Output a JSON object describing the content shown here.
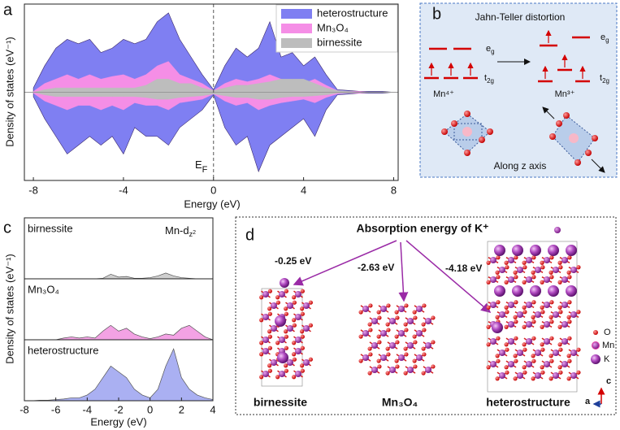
{
  "chart_data": [
    {
      "type": "area",
      "panel_label": "a",
      "xlabel": "Energy (eV)",
      "ylabel": "Density of states (eV⁻¹)",
      "annotation": [
        "E",
        "F"
      ],
      "x": [
        -8,
        -7.5,
        -7,
        -6.5,
        -6,
        -5.5,
        -5,
        -4.5,
        -4,
        -3.5,
        -3,
        -2.5,
        -2,
        -1.5,
        -1,
        -0.5,
        0,
        0.5,
        1,
        1.5,
        2,
        2.5,
        3,
        3.5,
        4,
        4.5,
        5,
        5.5,
        6,
        6.5,
        7,
        7.5,
        8
      ],
      "xlim": [
        -8.4,
        8.2
      ],
      "xticks": [
        -8,
        -4,
        0,
        4,
        8
      ],
      "ylim": [
        -10,
        10
      ],
      "legend": "upper right",
      "series": [
        {
          "name": "heterostructure",
          "color": "#7f7ff2",
          "values": [
            0.5,
            3,
            5,
            6,
            5.5,
            6,
            4.5,
            5,
            6,
            5.5,
            6,
            8,
            9,
            6,
            4,
            2,
            0.3,
            3,
            5,
            4,
            5,
            8,
            4,
            4.5,
            3,
            4,
            2,
            0.3,
            0.2,
            0.1,
            0.1,
            0.1,
            0
          ],
          "values_down": [
            -0.5,
            -3,
            -5,
            -7,
            -6,
            -5,
            -6,
            -5,
            -7,
            -4,
            -5,
            -5,
            -6,
            -4,
            -3,
            -2,
            -0.3,
            -4,
            -6,
            -5,
            -9,
            -6,
            -5,
            -4,
            -3,
            -5,
            -2,
            -0.3,
            -0.2,
            -0.1,
            -0.1,
            -0.1,
            0
          ]
        },
        {
          "name": "Mn₃O₄",
          "color": "#f58ee6",
          "values": [
            0.1,
            1,
            1.5,
            2,
            1.5,
            2,
            1.5,
            1.8,
            2,
            1.5,
            2,
            3,
            3.5,
            2,
            1.5,
            1,
            0.2,
            1,
            1.5,
            1.2,
            1.5,
            2,
            1.5,
            1.2,
            1,
            1.5,
            0.8,
            0.2,
            0.1,
            0.1,
            0,
            0,
            0
          ],
          "values_down": [
            -0.1,
            -1,
            -1.5,
            -2,
            -1.5,
            -1.5,
            -2,
            -1.5,
            -2,
            -1.2,
            -1.5,
            -1.5,
            -2,
            -1.2,
            -1,
            -0.8,
            -0.2,
            -1,
            -1.5,
            -1.2,
            -2,
            -1.5,
            -1.2,
            -1,
            -0.8,
            -1.2,
            -0.6,
            -0.2,
            -0.1,
            -0.1,
            0,
            0,
            0
          ]
        },
        {
          "name": "birnessite",
          "color": "#bdbdbd",
          "values": [
            0,
            0.3,
            0.5,
            0.5,
            0.5,
            0.5,
            0.5,
            0.5,
            0.5,
            0.5,
            0.8,
            1.5,
            1.5,
            1,
            1,
            0.5,
            0.2,
            0.5,
            0.8,
            0.8,
            1,
            1.2,
            1.5,
            1.5,
            1.5,
            1,
            0.5,
            0.2,
            0.1,
            0,
            0,
            0,
            0
          ],
          "values_down": [
            0,
            -0.3,
            -0.5,
            -0.5,
            -0.5,
            -0.5,
            -0.5,
            -0.5,
            -0.5,
            -0.5,
            -0.6,
            -0.8,
            -0.8,
            -0.6,
            -0.5,
            -0.4,
            -0.2,
            -0.4,
            -0.6,
            -0.6,
            -0.8,
            -0.8,
            -0.6,
            -0.5,
            -0.5,
            -0.4,
            -0.3,
            -0.1,
            -0.1,
            0,
            0,
            0,
            0
          ]
        }
      ]
    },
    {
      "type": "stacked-panels",
      "panel_label": "c",
      "xlabel": "Energy (eV)",
      "ylabel": "Density of states (eV⁻¹)",
      "annotation": [
        "Mn-d",
        "z",
        "2"
      ],
      "x": [
        -8,
        -7.5,
        -7,
        -6.5,
        -6,
        -5.5,
        -5,
        -4.5,
        -4,
        -3.5,
        -3,
        -2.5,
        -2,
        -1.5,
        -1,
        -0.5,
        0,
        0.5,
        1,
        1.5,
        2,
        2.5,
        3,
        3.5,
        4
      ],
      "xlim": [
        -8,
        4
      ],
      "xticks": [
        -8,
        -6,
        -4,
        -2,
        0,
        2,
        4
      ],
      "ylim": [
        0,
        10
      ],
      "series": [
        {
          "name": "birnessite",
          "color": "#cfcfcf",
          "values": [
            0,
            0,
            0,
            0,
            0,
            0,
            0,
            0,
            0,
            0,
            0.1,
            0.8,
            0.3,
            0.4,
            0.1,
            0.1,
            0.2,
            0.5,
            1,
            0.5,
            0.2,
            0.1,
            0,
            0,
            0
          ]
        },
        {
          "name": "Mn₃O₄",
          "color": "#f3a2e4",
          "values": [
            0,
            0,
            0,
            0,
            0,
            0.3,
            0.5,
            0.3,
            0.5,
            0.3,
            1.5,
            2.5,
            1.5,
            2,
            1,
            0.5,
            0.2,
            0.5,
            1,
            0.8,
            2,
            2.5,
            1.5,
            0.5,
            0
          ]
        },
        {
          "name": "heterostructure",
          "color": "#aab0f2",
          "values": [
            0,
            0,
            0.1,
            0.1,
            0.2,
            0.3,
            0.5,
            0.5,
            1,
            2,
            4,
            6,
            5,
            4,
            2,
            1,
            0.5,
            2,
            6,
            9,
            4,
            2,
            1,
            0.5,
            0.2
          ]
        }
      ]
    }
  ],
  "diagram_b": {
    "panel_label": "b",
    "title": "Jahn-Teller distortion",
    "left": {
      "eg": [
        "e",
        "g"
      ],
      "t2g": [
        "t",
        "2g"
      ],
      "ion": "Mn⁴⁺"
    },
    "right": {
      "eg": [
        "e",
        "g"
      ],
      "t2g": [
        "t",
        "2g"
      ],
      "ion": "Mn³⁺"
    },
    "caption": "Along z axis"
  },
  "diagram_d": {
    "panel_label": "d",
    "title": "Absorption energy of K⁺",
    "energies": [
      "-0.25 eV",
      "-2.63 eV",
      "-4.18 eV"
    ],
    "structures": [
      "birnessite",
      "Mn₃O₄",
      "heterostructure"
    ],
    "legend": [
      "O",
      "Mn",
      "K"
    ],
    "axes": [
      "c",
      "a"
    ]
  }
}
